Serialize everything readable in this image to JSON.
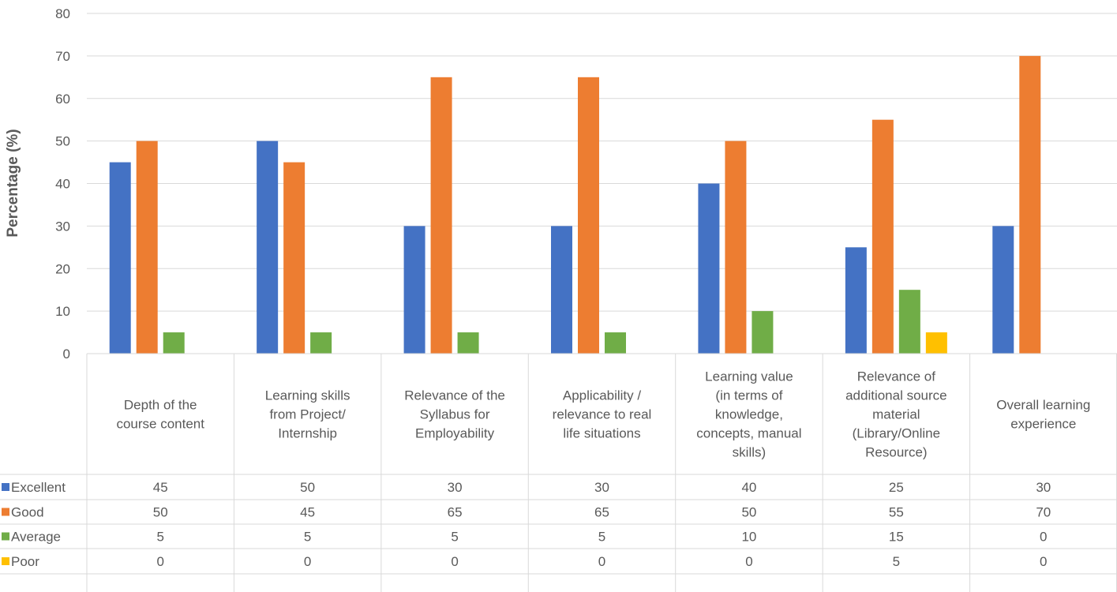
{
  "chart_data": {
    "type": "bar",
    "title": "",
    "ylabel": "Percentage (%)",
    "ylim": [
      0,
      80
    ],
    "yticks": [
      0,
      10,
      20,
      30,
      40,
      50,
      60,
      70,
      80
    ],
    "grid": true,
    "legend": "data-table",
    "categories": [
      [
        "Depth of the",
        "course content"
      ],
      [
        "Learning skills",
        "from Project/",
        "Internship"
      ],
      [
        "Relevance of the",
        "Syllabus for",
        "Employability"
      ],
      [
        "Applicability /",
        "relevance to real",
        "life situations"
      ],
      [
        "Learning value",
        "(in terms of",
        "knowledge,",
        "concepts, manual",
        "skills)"
      ],
      [
        "Relevance of",
        "additional source",
        "material",
        "(Library/Online",
        "Resource)"
      ],
      [
        "Overall learning",
        "experience"
      ]
    ],
    "series": [
      {
        "name": "Excellent",
        "color": "#4472C4",
        "values": [
          45,
          50,
          30,
          30,
          40,
          25,
          30
        ]
      },
      {
        "name": "Good",
        "color": "#ED7D31",
        "values": [
          50,
          45,
          65,
          65,
          50,
          55,
          70
        ]
      },
      {
        "name": "Average",
        "color": "#70AD47",
        "values": [
          5,
          5,
          5,
          5,
          10,
          15,
          0
        ]
      },
      {
        "name": "Poor",
        "color": "#FFC000",
        "values": [
          0,
          0,
          0,
          0,
          0,
          5,
          0
        ]
      }
    ]
  }
}
